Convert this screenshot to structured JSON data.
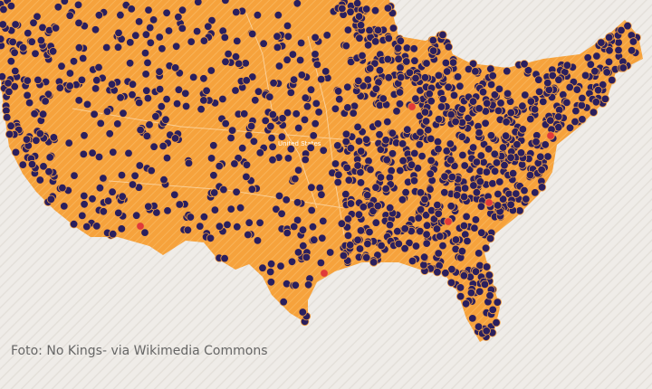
{
  "map": {
    "label": "United States"
  },
  "caption": "Foto: No Kings- via Wikimedia Commons"
}
